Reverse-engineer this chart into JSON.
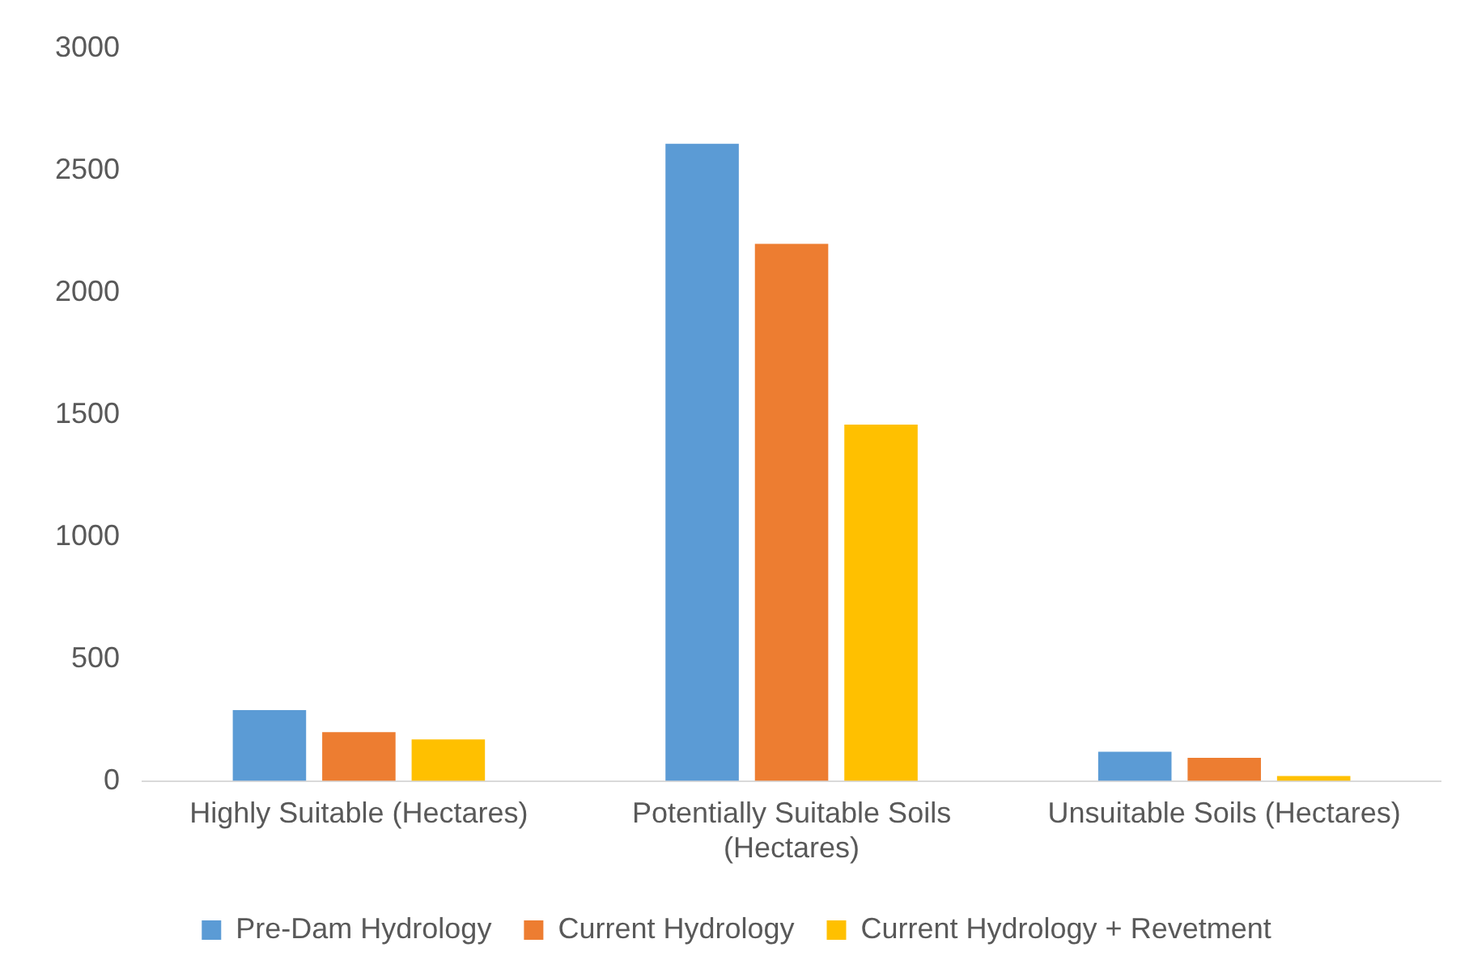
{
  "chart_data": {
    "type": "bar",
    "categories": [
      "Highly Suitable (Hectares)",
      "Potentially Suitable Soils (Hectares)",
      "Unsuitable Soils (Hectares)"
    ],
    "series": [
      {
        "name": "Pre-Dam Hydrology",
        "color": "#5b9bd5",
        "values": [
          290,
          2610,
          120
        ]
      },
      {
        "name": "Current Hydrology",
        "color": "#ed7d31",
        "values": [
          200,
          2200,
          95
        ]
      },
      {
        "name": "Current Hydrology + Revetment",
        "color": "#ffc000",
        "values": [
          170,
          1460,
          20
        ]
      }
    ],
    "ylim": [
      0,
      3000
    ],
    "yticks": [
      0,
      500,
      1000,
      1500,
      2000,
      2500,
      3000
    ],
    "grid": false,
    "legend": "bottom"
  }
}
